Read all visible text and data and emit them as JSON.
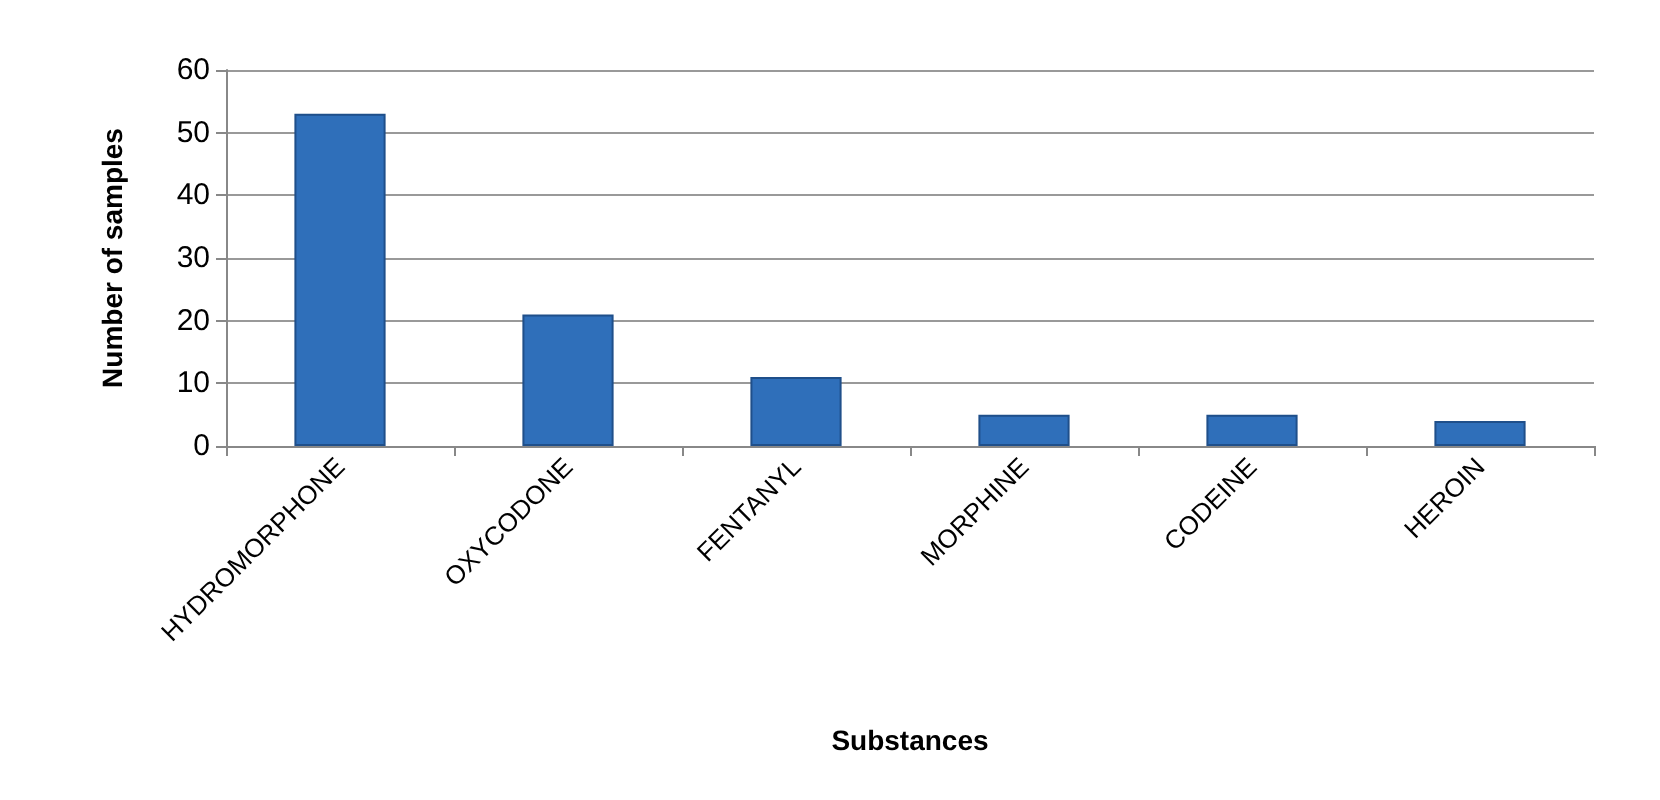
{
  "chart_data": {
    "type": "bar",
    "xlabel": "Substances",
    "ylabel": "Number of samples",
    "categories": [
      "HYDROMORPHONE",
      "OXYCODONE",
      "FENTANYL",
      "MORPHINE",
      "CODEINE",
      "HEROIN"
    ],
    "values": [
      53,
      21,
      11,
      5,
      5,
      4
    ],
    "color": "#2f6fba",
    "ylim": [
      0,
      60
    ],
    "yticks": [
      0,
      10,
      20,
      30,
      40,
      50,
      60
    ],
    "grid": "y"
  }
}
